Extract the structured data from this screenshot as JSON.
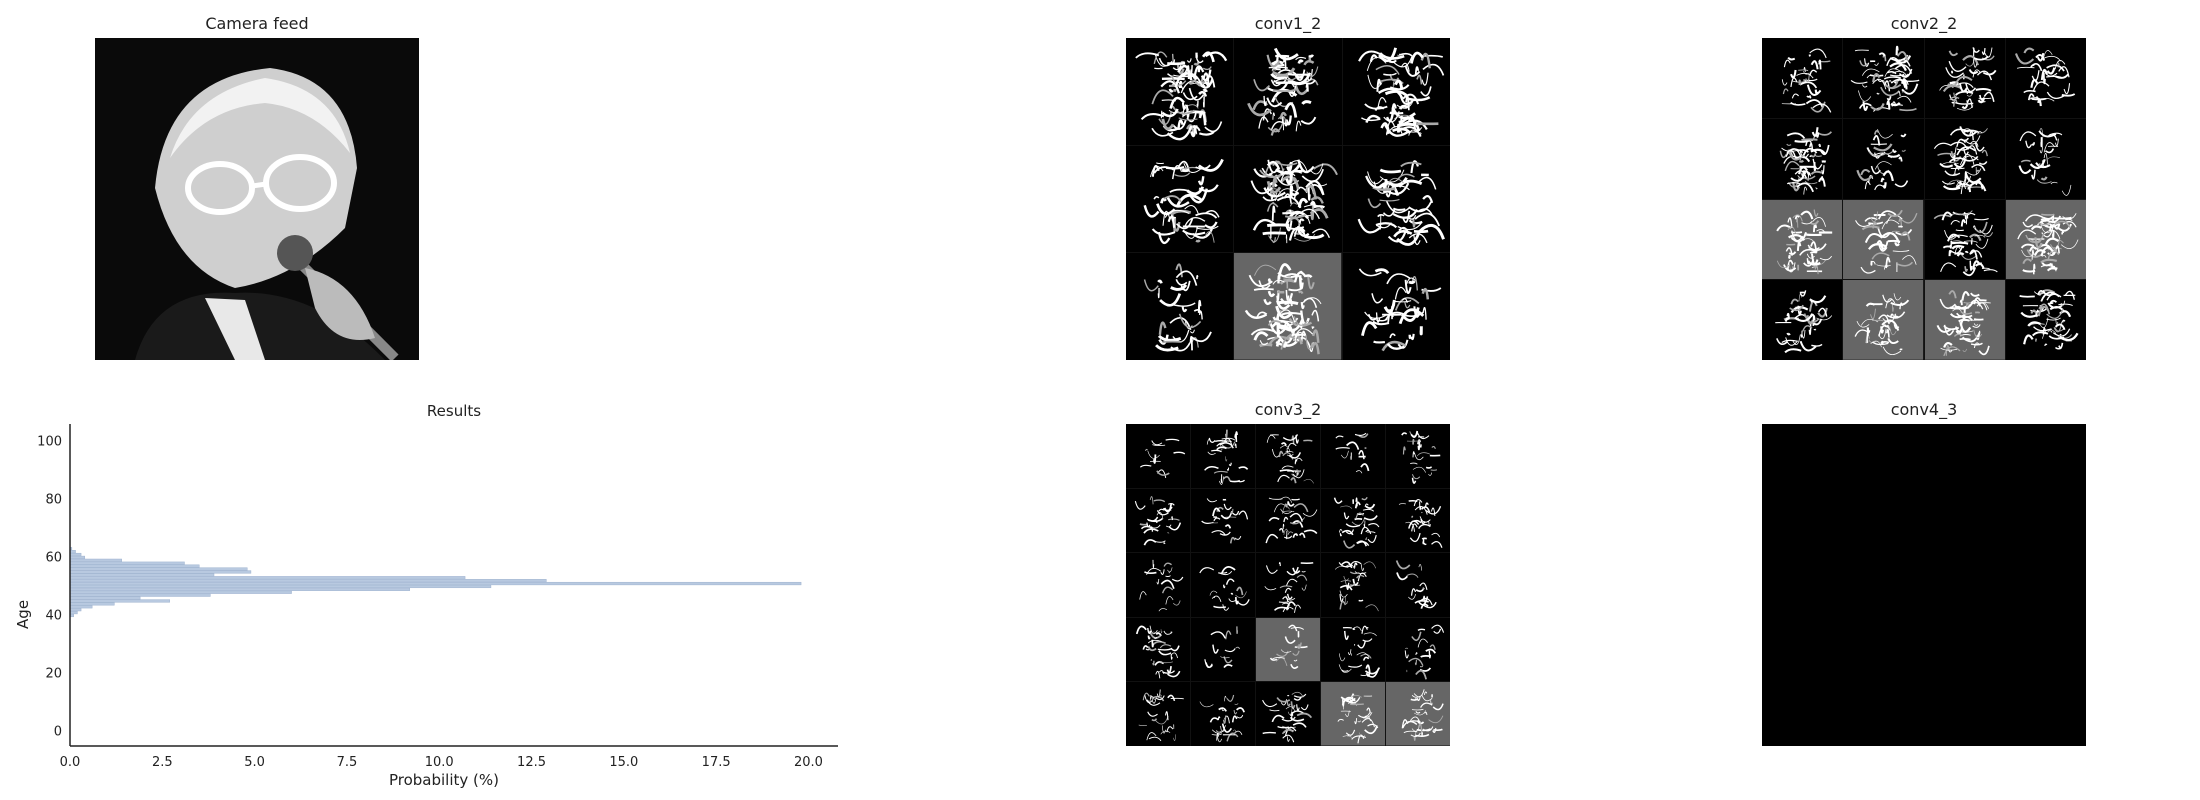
{
  "panels": {
    "camera": {
      "title": "Camera feed"
    },
    "conv1": {
      "title": "conv1_2",
      "rows": 3,
      "cols": 3
    },
    "conv2": {
      "title": "conv2_2",
      "rows": 4,
      "cols": 4
    },
    "conv3": {
      "title": "conv3_2",
      "rows": 5,
      "cols": 5
    },
    "conv4": {
      "title": "conv4_3"
    }
  },
  "chart_data": {
    "type": "bar",
    "orientation": "horizontal",
    "title": "Results",
    "xlabel": "Probability (%)",
    "ylabel": "Age",
    "xlim": [
      0,
      20.8
    ],
    "ylim": [
      -5,
      106
    ],
    "xticks": [
      "0.0",
      "2.5",
      "5.0",
      "7.5",
      "10.0",
      "12.5",
      "15.0",
      "17.5",
      "20.0"
    ],
    "yticks": [
      "0",
      "20",
      "40",
      "60",
      "80",
      "100"
    ],
    "bar_color": "#b8c9e0",
    "categories": [
      40,
      41,
      42,
      43,
      44,
      45,
      46,
      47,
      48,
      49,
      50,
      51,
      52,
      53,
      54,
      55,
      56,
      57,
      58,
      59,
      60,
      61,
      62,
      63
    ],
    "values": [
      0.1,
      0.2,
      0.3,
      0.6,
      1.2,
      2.7,
      1.9,
      3.8,
      6.0,
      9.2,
      11.4,
      19.8,
      12.9,
      10.7,
      3.9,
      4.9,
      4.8,
      3.5,
      3.1,
      1.4,
      0.4,
      0.3,
      0.15,
      0.05
    ]
  }
}
